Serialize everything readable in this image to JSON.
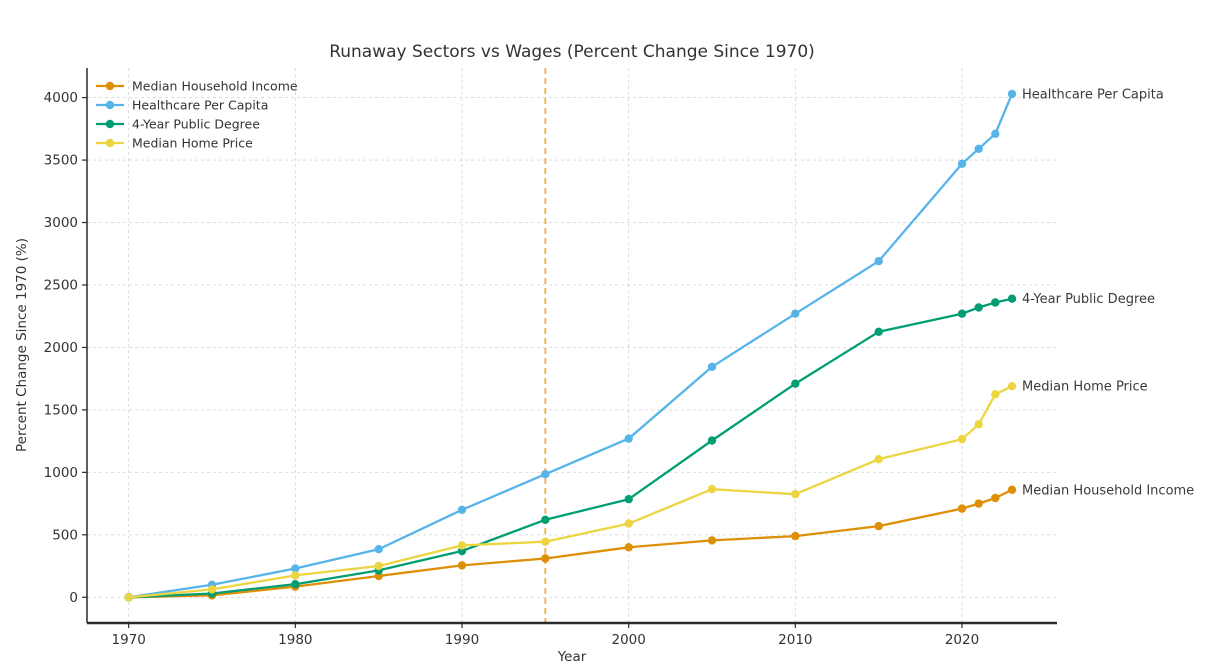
{
  "chart_data": {
    "type": "line",
    "title": "Runaway Sectors vs Wages (Percent Change Since 1970)",
    "xlabel": "Year",
    "ylabel": "Percent Change Since 1970 (%)",
    "x": [
      1970,
      1975,
      1980,
      1985,
      1990,
      1995,
      2000,
      2005,
      2010,
      2015,
      2020,
      2021,
      2022,
      2023
    ],
    "series": [
      {
        "name": "Median Household Income",
        "color": "#DE8F05",
        "values": [
          0,
          15,
          85,
          170,
          255,
          310,
          400,
          455,
          490,
          570,
          710,
          750,
          795,
          860
        ]
      },
      {
        "name": "Healthcare Per Capita",
        "color": "#56B4E9",
        "values": [
          0,
          100,
          230,
          385,
          700,
          985,
          1270,
          1845,
          2270,
          2690,
          3470,
          3590,
          3710,
          4030
        ]
      },
      {
        "name": "4-Year Public Degree",
        "color": "#029E73",
        "values": [
          0,
          30,
          105,
          215,
          370,
          620,
          785,
          1255,
          1710,
          2125,
          2270,
          2320,
          2360,
          2390
        ]
      },
      {
        "name": "Median Home Price",
        "color": "#ECD540",
        "values": [
          0,
          63,
          175,
          250,
          415,
          445,
          590,
          865,
          825,
          1105,
          1265,
          1385,
          1625,
          1690
        ]
      }
    ],
    "xticks": [
      1970,
      1980,
      1990,
      2000,
      2010,
      2020
    ],
    "yticks": [
      0,
      500,
      1000,
      1500,
      2000,
      2500,
      3000,
      3500,
      4000
    ],
    "xlim": [
      1967.5,
      2025.7
    ],
    "ylim": [
      -206,
      4237
    ],
    "vline": {
      "x": 1995,
      "color": "#F3AC4E",
      "style": "dashed"
    },
    "grid": true,
    "grid_color": "#D8D8D8",
    "legend_position": "upper left",
    "legend_entries": [
      "Median Household Income",
      "Healthcare Per Capita",
      "4-Year Public Degree",
      "Median Home Price"
    ],
    "end_labels": [
      "Median Household Income",
      "Healthcare Per Capita",
      "4-Year Public Degree",
      "Median Home Price"
    ]
  }
}
